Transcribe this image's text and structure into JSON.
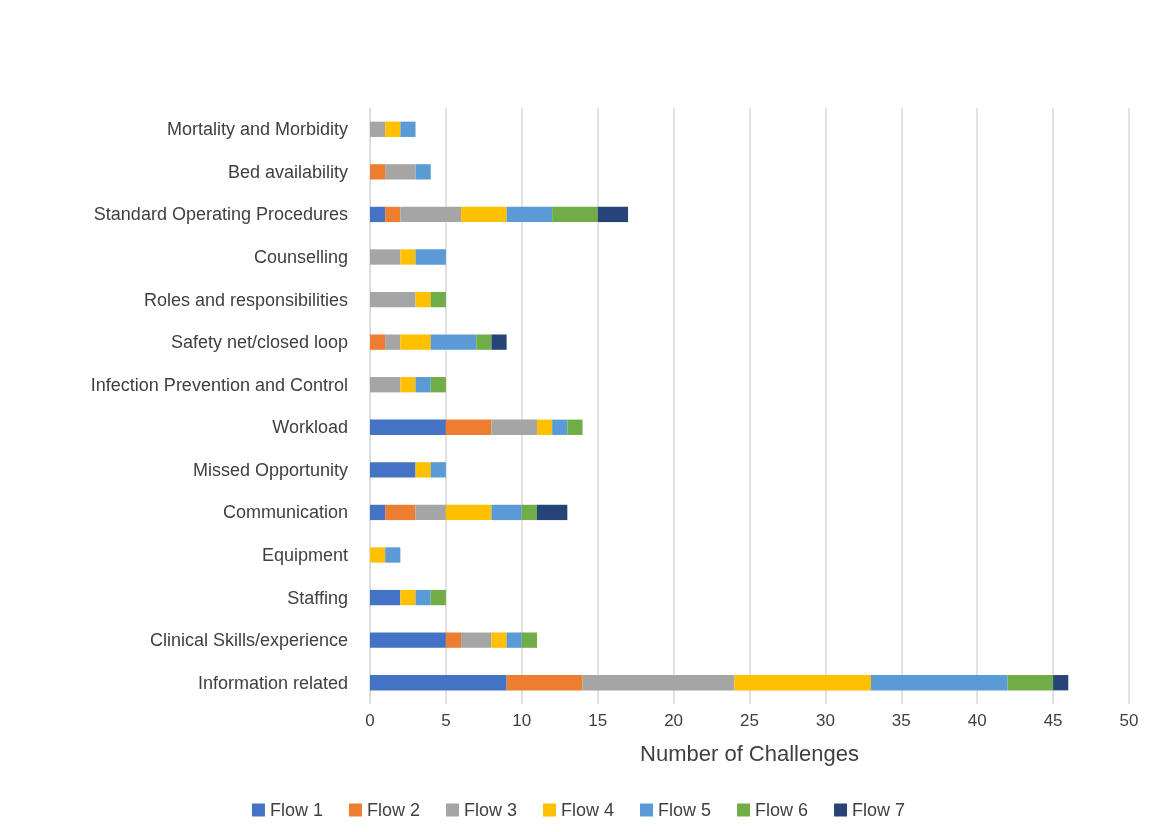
{
  "chart_data": {
    "type": "bar",
    "orientation": "horizontal",
    "stacked": true,
    "xlabel": "Number of Challenges",
    "categories": [
      "Mortality and Morbidity",
      "Bed availability",
      "Standard Operating Procedures",
      "Counselling",
      "Roles and responsibilities",
      "Safety net/closed loop",
      "Infection Prevention and Control",
      "Workload",
      "Missed Opportunity",
      "Communication",
      "Equipment",
      "Staffing",
      "Clinical Skills/experience",
      "Information related"
    ],
    "series": [
      {
        "name": "Flow 1",
        "color": "#4472c4",
        "values": [
          null,
          null,
          1,
          null,
          null,
          null,
          null,
          5,
          3,
          1,
          null,
          2,
          5,
          9
        ]
      },
      {
        "name": "Flow 2",
        "color": "#ed7d31",
        "values": [
          null,
          1,
          1,
          null,
          null,
          1,
          null,
          3,
          null,
          2,
          null,
          null,
          1,
          5
        ]
      },
      {
        "name": "Flow 3",
        "color": "#a5a5a5",
        "values": [
          1,
          2,
          4,
          2,
          3,
          1,
          2,
          3,
          null,
          2,
          null,
          null,
          2,
          10
        ]
      },
      {
        "name": "Flow 4",
        "color": "#ffc000",
        "values": [
          1,
          null,
          3,
          1,
          1,
          2,
          1,
          1,
          1,
          3,
          1,
          1,
          1,
          9
        ]
      },
      {
        "name": "Flow 5",
        "color": "#5b9bd5",
        "values": [
          1,
          1,
          3,
          2,
          null,
          3,
          1,
          1,
          1,
          2,
          1,
          1,
          1,
          9
        ]
      },
      {
        "name": "Flow 6",
        "color": "#70ad47",
        "values": [
          null,
          null,
          3,
          null,
          1,
          1,
          1,
          1,
          null,
          1,
          null,
          1,
          1,
          3
        ]
      },
      {
        "name": "Flow 7",
        "color": "#264478",
        "values": [
          null,
          null,
          2,
          null,
          null,
          1,
          null,
          null,
          null,
          2,
          null,
          null,
          null,
          1
        ]
      }
    ],
    "xlim": [
      0,
      50
    ],
    "xticks": [
      0,
      5,
      10,
      15,
      20,
      25,
      30,
      35,
      40,
      45,
      50
    ],
    "grid": "x",
    "legend": "bottom"
  }
}
